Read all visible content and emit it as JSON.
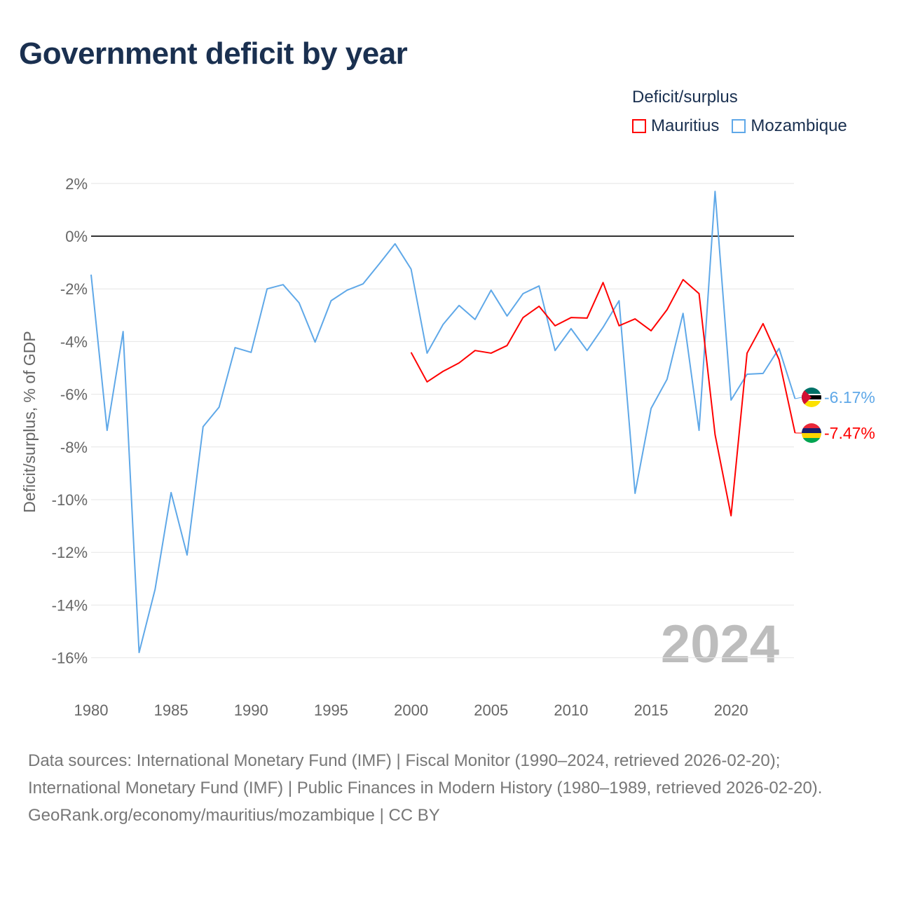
{
  "title": "Government deficit by year",
  "legend": {
    "title": "Deficit/surplus",
    "items": [
      {
        "name": "Mauritius",
        "color": "#ff0000"
      },
      {
        "name": "Mozambique",
        "color": "#5fa8e8"
      }
    ]
  },
  "year_label": "2024",
  "footer": {
    "sources": "Data sources: International Monetary Fund (IMF) | Fiscal Monitor (1990–2024, retrieved 2026-02-20); International Monetary Fund (IMF) | Public Finances in Modern History (1980–1989, retrieved 2026-02-20).",
    "credit": "GeoRank.org/economy/mauritius/mozambique | CC BY"
  },
  "chart_data": {
    "type": "line",
    "title": "Government deficit by year",
    "xlabel": "",
    "ylabel": "Deficit/surplus, % of GDP",
    "xlim": [
      1980,
      2024
    ],
    "ylim": [
      -17,
      2.5
    ],
    "xticks": [
      1980,
      1985,
      1990,
      1995,
      2000,
      2005,
      2010,
      2015,
      2020
    ],
    "yticks": [
      2,
      0,
      -2,
      -4,
      -6,
      -8,
      -10,
      -12,
      -14,
      -16
    ],
    "ytick_labels": [
      "2%",
      "0%",
      "-2%",
      "-4%",
      "-6%",
      "-8%",
      "-10%",
      "-12%",
      "-14%",
      "-16%"
    ],
    "grid": true,
    "legend_position": "top-right",
    "series": [
      {
        "name": "Mauritius",
        "color": "#ff0000",
        "end_label": "-7.47%",
        "x": [
          2000,
          2001,
          2002,
          2003,
          2004,
          2005,
          2006,
          2007,
          2008,
          2009,
          2010,
          2011,
          2012,
          2013,
          2014,
          2015,
          2016,
          2017,
          2018,
          2019,
          2020,
          2021,
          2022,
          2023,
          2024
        ],
        "values": [
          -4.41,
          -5.53,
          -5.13,
          -4.81,
          -4.34,
          -4.44,
          -4.15,
          -3.09,
          -2.66,
          -3.4,
          -3.09,
          -3.11,
          -1.76,
          -3.4,
          -3.14,
          -3.59,
          -2.79,
          -1.65,
          -2.18,
          -7.53,
          -10.61,
          -4.44,
          -3.32,
          -4.68,
          -7.47
        ]
      },
      {
        "name": "Mozambique",
        "color": "#5fa8e8",
        "end_label": "-6.17%",
        "x": [
          1980,
          1981,
          1982,
          1983,
          1984,
          1985,
          1986,
          1987,
          1988,
          1989,
          1990,
          1991,
          1992,
          1993,
          1994,
          1995,
          1996,
          1997,
          1998,
          1999,
          2000,
          2001,
          2002,
          2003,
          2004,
          2005,
          2006,
          2007,
          2008,
          2009,
          2010,
          2011,
          2012,
          2013,
          2014,
          2015,
          2016,
          2017,
          2018,
          2019,
          2020,
          2021,
          2022,
          2023,
          2024
        ],
        "values": [
          -1.46,
          -7.37,
          -3.62,
          -15.8,
          -13.4,
          -9.73,
          -12.1,
          -7.23,
          -6.49,
          -4.23,
          -4.41,
          -2.0,
          -1.84,
          -2.53,
          -4.02,
          -2.45,
          -2.05,
          -1.81,
          -1.06,
          -0.29,
          -1.25,
          -4.44,
          -3.35,
          -2.63,
          -3.16,
          -2.05,
          -3.03,
          -2.18,
          -1.89,
          -4.34,
          -3.51,
          -4.34,
          -3.46,
          -2.45,
          -9.76,
          -6.54,
          -5.43,
          -2.93,
          -7.37,
          1.7,
          -6.22,
          -5.24,
          -5.21,
          -4.26,
          -6.17
        ]
      }
    ]
  }
}
